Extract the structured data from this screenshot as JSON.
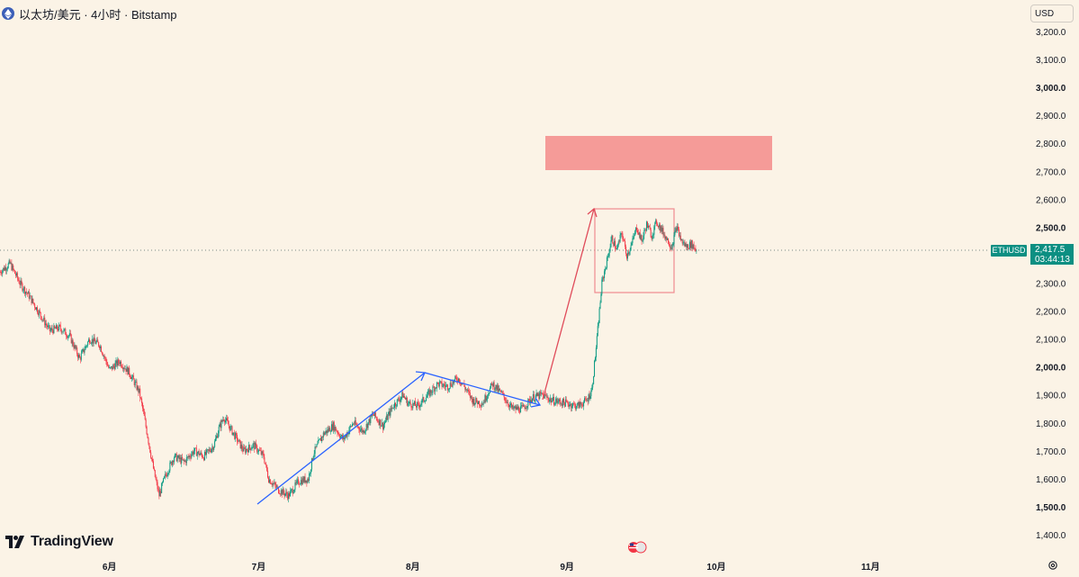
{
  "header": {
    "title": "以太坊/美元 · 4小时 · Bitstamp"
  },
  "currency_button": {
    "label": "USD"
  },
  "logo": {
    "text": "TradingView"
  },
  "price_label": {
    "symbol": "ETHUSD",
    "price": "2,417.5",
    "countdown": "03:44:13"
  },
  "icons": {
    "coin": "ethereum-icon",
    "settings": "gear-icon",
    "events": "us-flag-icon"
  },
  "colors": {
    "background": "#fbf3e6",
    "up": "#089981",
    "down": "#f23645",
    "blue_line": "#2962ff",
    "red_arrow": "#e04b5a",
    "zone_fill": "#f59b98",
    "box": "#f08a8f",
    "price_badge": "#0c8f82"
  },
  "chart_data": {
    "type": "candlestick",
    "symbol": "ETHUSD",
    "interval": "4h",
    "exchange": "Bitstamp",
    "y_ticks": [
      3200,
      3100,
      3000,
      2900,
      2800,
      2700,
      2600,
      2500,
      2400,
      2300,
      2200,
      2100,
      2000,
      1900,
      1800,
      1700,
      1600,
      1500,
      1400
    ],
    "y_tick_labels": [
      "3,200.0",
      "3,100.0",
      "3,000.0",
      "2,900.0",
      "2,800.0",
      "2,700.0",
      "2,600.0",
      "2,500.0",
      "2,400.0",
      "2,300.0",
      "2,200.0",
      "2,100.0",
      "2,000.0",
      "1,900.0",
      "1,800.0",
      "1,700.0",
      "1,600.0",
      "1,500.0",
      "1,400.0"
    ],
    "y_bold": [
      "3,000.0",
      "2,500.0",
      "2,000.0",
      "1,500.0"
    ],
    "ylim": [
      1330,
      3260
    ],
    "x_ticks": [
      "6月",
      "7月",
      "8月",
      "9月",
      "10月",
      "11月"
    ],
    "x_domain": [
      "2025-05-10",
      "2025-11-25"
    ],
    "x_tick_dates": [
      "2025-06-01",
      "2025-07-01",
      "2025-08-01",
      "2025-09-01",
      "2025-10-01",
      "2025-11-01"
    ],
    "last_price": 2417.5,
    "price_path": [
      [
        "2025-05-10",
        2340
      ],
      [
        "2025-05-12",
        2370
      ],
      [
        "2025-05-14",
        2300
      ],
      [
        "2025-05-16",
        2250
      ],
      [
        "2025-05-18",
        2190
      ],
      [
        "2025-05-20",
        2130
      ],
      [
        "2025-05-22",
        2140
      ],
      [
        "2025-05-24",
        2110
      ],
      [
        "2025-05-26",
        2030
      ],
      [
        "2025-05-28",
        2100
      ],
      [
        "2025-05-30",
        2080
      ],
      [
        "2025-06-01",
        1990
      ],
      [
        "2025-06-03",
        2020
      ],
      [
        "2025-06-05",
        1980
      ],
      [
        "2025-06-07",
        1910
      ],
      [
        "2025-06-08",
        1820
      ],
      [
        "2025-06-09",
        1720
      ],
      [
        "2025-06-10",
        1620
      ],
      [
        "2025-06-11",
        1540
      ],
      [
        "2025-06-12",
        1600
      ],
      [
        "2025-06-14",
        1680
      ],
      [
        "2025-06-16",
        1660
      ],
      [
        "2025-06-18",
        1700
      ],
      [
        "2025-06-20",
        1680
      ],
      [
        "2025-06-22",
        1720
      ],
      [
        "2025-06-23",
        1780
      ],
      [
        "2025-06-24",
        1820
      ],
      [
        "2025-06-26",
        1760
      ],
      [
        "2025-06-28",
        1700
      ],
      [
        "2025-06-30",
        1720
      ],
      [
        "2025-07-02",
        1680
      ],
      [
        "2025-07-03",
        1600
      ],
      [
        "2025-07-05",
        1560
      ],
      [
        "2025-07-07",
        1540
      ],
      [
        "2025-07-09",
        1590
      ],
      [
        "2025-07-11",
        1600
      ],
      [
        "2025-07-12",
        1690
      ],
      [
        "2025-07-14",
        1760
      ],
      [
        "2025-07-16",
        1790
      ],
      [
        "2025-07-18",
        1740
      ],
      [
        "2025-07-20",
        1800
      ],
      [
        "2025-07-22",
        1770
      ],
      [
        "2025-07-24",
        1830
      ],
      [
        "2025-07-26",
        1790
      ],
      [
        "2025-07-28",
        1860
      ],
      [
        "2025-07-30",
        1900
      ],
      [
        "2025-07-31",
        1870
      ],
      [
        "2025-08-02",
        1860
      ],
      [
        "2025-08-04",
        1900
      ],
      [
        "2025-08-06",
        1940
      ],
      [
        "2025-08-08",
        1930
      ],
      [
        "2025-08-10",
        1960
      ],
      [
        "2025-08-11",
        1940
      ],
      [
        "2025-08-13",
        1880
      ],
      [
        "2025-08-15",
        1870
      ],
      [
        "2025-08-17",
        1940
      ],
      [
        "2025-08-19",
        1900
      ],
      [
        "2025-08-21",
        1850
      ],
      [
        "2025-08-23",
        1850
      ],
      [
        "2025-08-25",
        1890
      ],
      [
        "2025-08-27",
        1900
      ],
      [
        "2025-08-29",
        1880
      ],
      [
        "2025-09-01",
        1870
      ],
      [
        "2025-09-03",
        1860
      ],
      [
        "2025-09-05",
        1880
      ],
      [
        "2025-09-06",
        1920
      ],
      [
        "2025-09-07",
        2100
      ],
      [
        "2025-09-08",
        2300
      ],
      [
        "2025-09-09",
        2380
      ],
      [
        "2025-09-10",
        2460
      ],
      [
        "2025-09-11",
        2420
      ],
      [
        "2025-09-12",
        2480
      ],
      [
        "2025-09-13",
        2400
      ],
      [
        "2025-09-14",
        2440
      ],
      [
        "2025-09-15",
        2500
      ],
      [
        "2025-09-16",
        2450
      ],
      [
        "2025-09-17",
        2510
      ],
      [
        "2025-09-18",
        2470
      ],
      [
        "2025-09-19",
        2520
      ],
      [
        "2025-09-20",
        2490
      ],
      [
        "2025-09-21",
        2460
      ],
      [
        "2025-09-22",
        2430
      ],
      [
        "2025-09-23",
        2500
      ],
      [
        "2025-09-24",
        2450
      ],
      [
        "2025-09-25",
        2430
      ],
      [
        "2025-09-26",
        2440
      ],
      [
        "2025-09-27",
        2417
      ]
    ],
    "drawings": {
      "resistance_zone": {
        "price_low": 2700,
        "price_high": 2820
      },
      "range_box": {
        "price_low": 2265,
        "price_high": 2565
      }
    }
  }
}
